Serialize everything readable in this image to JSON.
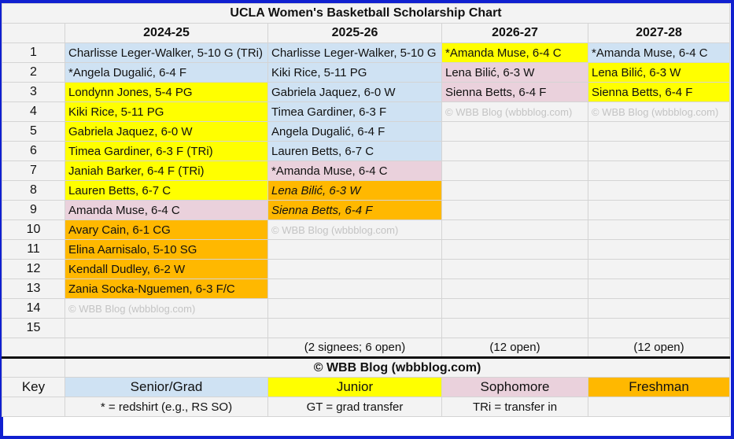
{
  "title": "UCLA Women's Basketball Scholarship Chart",
  "seasons": [
    "2024-25",
    "2025-26",
    "2026-27",
    "2027-28"
  ],
  "rows": [
    {
      "n": "1",
      "cells": [
        {
          "text": "Charlisse Leger-Walker, 5-10 G (TRi)",
          "class": "Senior/Grad"
        },
        {
          "text": "Charlisse Leger-Walker, 5-10 G",
          "class": "Senior/Grad"
        },
        {
          "text": "*Amanda Muse, 6-4 C",
          "class": "Junior"
        },
        {
          "text": "*Amanda Muse, 6-4 C",
          "class": "Senior/Grad"
        }
      ]
    },
    {
      "n": "2",
      "cells": [
        {
          "text": "*Angela Dugalić, 6-4 F",
          "class": "Senior/Grad"
        },
        {
          "text": "Kiki Rice, 5-11 PG",
          "class": "Senior/Grad"
        },
        {
          "text": "Lena Bilić, 6-3 W",
          "class": "Sophomore"
        },
        {
          "text": "Lena Bilić, 6-3 W",
          "class": "Junior"
        }
      ]
    },
    {
      "n": "3",
      "cells": [
        {
          "text": "Londynn Jones, 5-4 PG",
          "class": "Junior"
        },
        {
          "text": "Gabriela Jaquez, 6-0 W",
          "class": "Senior/Grad"
        },
        {
          "text": "Sienna Betts, 6-4 F",
          "class": "Sophomore"
        },
        {
          "text": "Sienna Betts, 6-4 F",
          "class": "Junior"
        }
      ]
    },
    {
      "n": "4",
      "cells": [
        {
          "text": "Kiki Rice, 5-11 PG",
          "class": "Junior"
        },
        {
          "text": "Timea Gardiner, 6-3 F",
          "class": "Senior/Grad"
        },
        {
          "text": "© WBB Blog (wbbblog.com)",
          "class": "watermark"
        },
        {
          "text": "© WBB Blog (wbbblog.com)",
          "class": "watermark"
        }
      ]
    },
    {
      "n": "5",
      "cells": [
        {
          "text": "Gabriela Jaquez, 6-0 W",
          "class": "Junior"
        },
        {
          "text": "Angela Dugalić, 6-4 F",
          "class": "Senior/Grad"
        },
        {
          "text": "",
          "class": "none"
        },
        {
          "text": "",
          "class": "none"
        }
      ]
    },
    {
      "n": "6",
      "cells": [
        {
          "text": "Timea Gardiner, 6-3 F (TRi)",
          "class": "Junior"
        },
        {
          "text": "Lauren Betts, 6-7 C",
          "class": "Senior/Grad"
        },
        {
          "text": "",
          "class": "none"
        },
        {
          "text": "",
          "class": "none"
        }
      ]
    },
    {
      "n": "7",
      "cells": [
        {
          "text": "Janiah Barker, 6-4 F (TRi)",
          "class": "Junior"
        },
        {
          "text": "*Amanda Muse, 6-4 C",
          "class": "Sophomore"
        },
        {
          "text": "",
          "class": "none"
        },
        {
          "text": "",
          "class": "none"
        }
      ]
    },
    {
      "n": "8",
      "cells": [
        {
          "text": "Lauren Betts, 6-7 C",
          "class": "Junior"
        },
        {
          "text": "Lena Bilić, 6-3 W",
          "class": "Freshman-italic"
        },
        {
          "text": "",
          "class": "none"
        },
        {
          "text": "",
          "class": "none"
        }
      ]
    },
    {
      "n": "9",
      "cells": [
        {
          "text": "Amanda Muse, 6-4 C",
          "class": "Sophomore"
        },
        {
          "text": "Sienna Betts, 6-4 F",
          "class": "Freshman-italic"
        },
        {
          "text": "",
          "class": "none"
        },
        {
          "text": "",
          "class": "none"
        }
      ]
    },
    {
      "n": "10",
      "cells": [
        {
          "text": "Avary Cain, 6-1 CG",
          "class": "Freshman"
        },
        {
          "text": "© WBB Blog (wbbblog.com)",
          "class": "watermark"
        },
        {
          "text": "",
          "class": "none"
        },
        {
          "text": "",
          "class": "none"
        }
      ]
    },
    {
      "n": "11",
      "cells": [
        {
          "text": "Elina Aarnisalo, 5-10 SG",
          "class": "Freshman"
        },
        {
          "text": "",
          "class": "none"
        },
        {
          "text": "",
          "class": "none"
        },
        {
          "text": "",
          "class": "none"
        }
      ]
    },
    {
      "n": "12",
      "cells": [
        {
          "text": "Kendall Dudley, 6-2 W",
          "class": "Freshman"
        },
        {
          "text": "",
          "class": "none"
        },
        {
          "text": "",
          "class": "none"
        },
        {
          "text": "",
          "class": "none"
        }
      ]
    },
    {
      "n": "13",
      "cells": [
        {
          "text": "Zania Socka-Nguemen, 6-3 F/C",
          "class": "Freshman"
        },
        {
          "text": "",
          "class": "none"
        },
        {
          "text": "",
          "class": "none"
        },
        {
          "text": "",
          "class": "none"
        }
      ]
    },
    {
      "n": "14",
      "cells": [
        {
          "text": "© WBB Blog (wbbblog.com)",
          "class": "watermark"
        },
        {
          "text": "",
          "class": "none"
        },
        {
          "text": "",
          "class": "none"
        },
        {
          "text": "",
          "class": "none"
        }
      ]
    },
    {
      "n": "15",
      "cells": [
        {
          "text": "",
          "class": "none"
        },
        {
          "text": "",
          "class": "none"
        },
        {
          "text": "",
          "class": "none"
        },
        {
          "text": "",
          "class": "none"
        }
      ]
    }
  ],
  "open_counts": [
    "",
    "(2 signees; 6 open)",
    "(12 open)",
    "(12 open)"
  ],
  "copyright": "© WBB Blog (wbbblog.com)",
  "key": {
    "label": "Key",
    "classes": [
      "Senior/Grad",
      "Junior",
      "Sophomore",
      "Freshman"
    ],
    "notes": [
      "* = redshirt (e.g., RS SO)",
      "GT = grad transfer",
      "TRi = transfer in",
      ""
    ]
  },
  "colors": {
    "frame": "#1020d0",
    "senior_grad": "#cfe2f3",
    "junior": "#ffff00",
    "sophomore": "#ead1dc",
    "freshman": "#ffb800",
    "background": "#f3f3f3"
  }
}
